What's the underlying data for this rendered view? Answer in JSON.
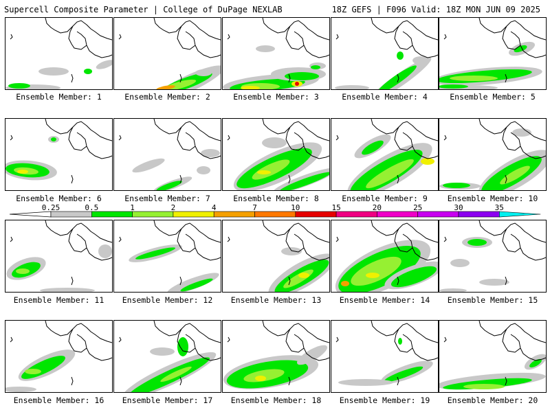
{
  "header": {
    "title": "Supercell Composite Parameter | College of DuPage NEXLAB",
    "run_info": "18Z GEFS | F096 Valid: 18Z MON JUN 09 2025"
  },
  "colorbar": {
    "labels": [
      "0.25",
      "0.5",
      "1",
      "2",
      "4",
      "7",
      "10",
      "15",
      "20",
      "25",
      "30",
      "35"
    ],
    "colors": [
      "#c8c8c8",
      "#00e600",
      "#96f032",
      "#f0f000",
      "#f5a000",
      "#ff7800",
      "#e60000",
      "#f00082",
      "#f000c8",
      "#c800f0",
      "#8c00f0",
      "#b464f0",
      "#00f0f0"
    ]
  },
  "members": [
    {
      "label": "Ensemble Member: 1"
    },
    {
      "label": "Ensemble Member: 2"
    },
    {
      "label": "Ensemble Member: 3"
    },
    {
      "label": "Ensemble Member: 4"
    },
    {
      "label": "Ensemble Member: 5"
    },
    {
      "label": "Ensemble Member: 6"
    },
    {
      "label": "Ensemble Member: 7"
    },
    {
      "label": "Ensemble Member: 8"
    },
    {
      "label": "Ensemble Member: 9"
    },
    {
      "label": "Ensemble Member: 10"
    },
    {
      "label": "Ensemble Member: 11"
    },
    {
      "label": "Ensemble Member: 12"
    },
    {
      "label": "Ensemble Member: 13"
    },
    {
      "label": "Ensemble Member: 14"
    },
    {
      "label": "Ensemble Member: 15"
    },
    {
      "label": "Ensemble Member: 16"
    },
    {
      "label": "Ensemble Member: 17"
    },
    {
      "label": "Ensemble Member: 18"
    },
    {
      "label": "Ensemble Member: 19"
    },
    {
      "label": "Ensemble Member: 20"
    }
  ]
}
